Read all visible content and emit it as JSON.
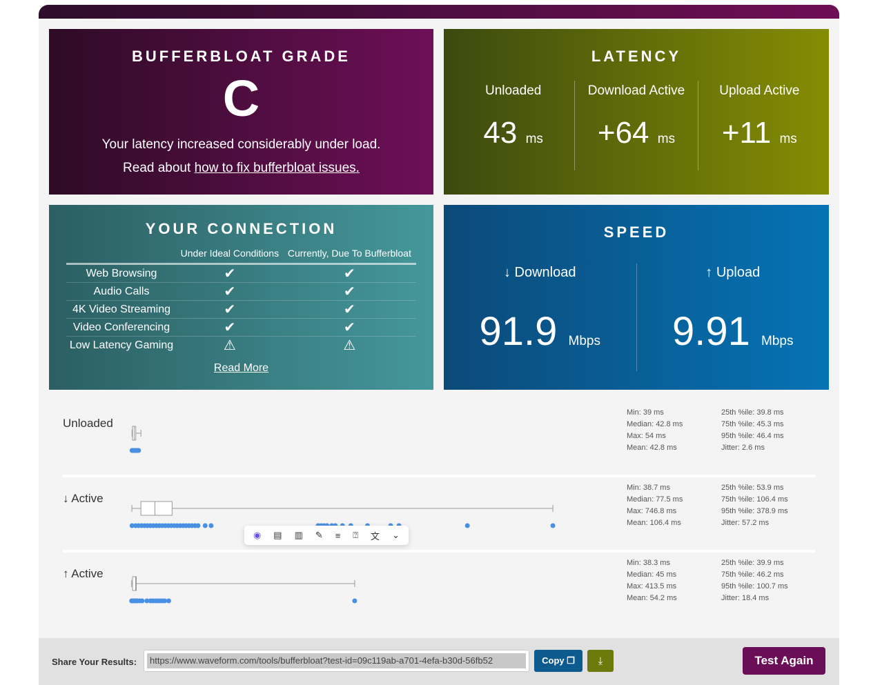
{
  "grade": {
    "title": "BUFFERBLOAT GRADE",
    "grade": "C",
    "line1": "Your latency increased considerably under load.",
    "line2_prefix": "Read about ",
    "link": "how to fix bufferbloat issues."
  },
  "latency": {
    "title": "LATENCY",
    "cols": [
      {
        "label": "Unloaded",
        "value": "43",
        "unit": "ms"
      },
      {
        "label": "Download Active",
        "value": "+64",
        "unit": "ms"
      },
      {
        "label": "Upload Active",
        "value": "+11",
        "unit": "ms"
      }
    ]
  },
  "connection": {
    "title": "YOUR CONNECTION",
    "headers": [
      "Under Ideal Conditions",
      "Currently, Due To Bufferbloat"
    ],
    "rows": [
      {
        "name": "Web Browsing",
        "ideal": "check",
        "current": "check"
      },
      {
        "name": "Audio Calls",
        "ideal": "check",
        "current": "check"
      },
      {
        "name": "4K Video Streaming",
        "ideal": "check",
        "current": "check"
      },
      {
        "name": "Video Conferencing",
        "ideal": "check",
        "current": "check"
      },
      {
        "name": "Low Latency Gaming",
        "ideal": "warning",
        "current": "warning"
      }
    ],
    "read_more": "Read More"
  },
  "speed": {
    "title": "SPEED",
    "download": {
      "label": "↓ Download",
      "value": "91.9",
      "unit": "Mbps"
    },
    "upload": {
      "label": "↑ Upload",
      "value": "9.91",
      "unit": "Mbps"
    }
  },
  "latency_plots": [
    {
      "label": "Unloaded",
      "min": 39,
      "q1": 39.8,
      "median": 42.8,
      "q3": 45.3,
      "max": 54,
      "stats": [
        "Min: 39 ms",
        "25th %ile: 39.8 ms",
        "Median: 42.8 ms",
        "75th %ile: 45.3 ms",
        "Max: 54 ms",
        "95th %ile: 46.4 ms",
        "Mean: 42.8 ms",
        "Jitter: 2.6 ms"
      ],
      "samples": [
        39,
        40,
        41,
        42,
        42.5,
        43,
        44,
        45,
        46,
        47,
        48,
        50
      ]
    },
    {
      "label": "↓ Active",
      "min": 38.7,
      "q1": 53.9,
      "median": 77.5,
      "q3": 106.4,
      "max": 746.8,
      "stats": [
        "Min: 38.7 ms",
        "25th %ile: 53.9 ms",
        "Median: 77.5 ms",
        "75th %ile: 106.4 ms",
        "Max: 746.8 ms",
        "95th %ile: 378.9 ms",
        "Mean: 106.4 ms",
        "Jitter: 57.2 ms"
      ],
      "samples": [
        39,
        45,
        50,
        55,
        60,
        65,
        70,
        75,
        80,
        85,
        90,
        95,
        100,
        105,
        110,
        115,
        120,
        125,
        130,
        135,
        140,
        145,
        150,
        162,
        172,
        352,
        357,
        362,
        367,
        375,
        381,
        393,
        407,
        435,
        474,
        488,
        603,
        746.8
      ]
    },
    {
      "label": "↑ Active",
      "min": 38.3,
      "q1": 39.9,
      "median": 45,
      "q3": 46.2,
      "max": 413.5,
      "stats": [
        "Min: 38.3 ms",
        "25th %ile: 39.9 ms",
        "Median: 45 ms",
        "75th %ile: 46.2 ms",
        "Max: 413.5 ms",
        "95th %ile: 100.7 ms",
        "Mean: 54.2 ms",
        "Jitter: 18.4 ms"
      ],
      "samples": [
        38.3,
        40,
        42,
        44,
        46,
        48,
        52,
        56,
        64,
        70,
        74,
        78,
        82,
        86,
        90,
        94,
        100.7,
        413.5
      ]
    }
  ],
  "share": {
    "label": "Share Your Results:",
    "url": "https://www.waveform.com/tools/bufferbloat?test-id=09c119ab-a701-4efa-b30d-56fb52",
    "copy": "Copy",
    "test_again": "Test Again"
  },
  "colors": {
    "dots": "#4a90e2",
    "purple": "#6b0e58"
  }
}
